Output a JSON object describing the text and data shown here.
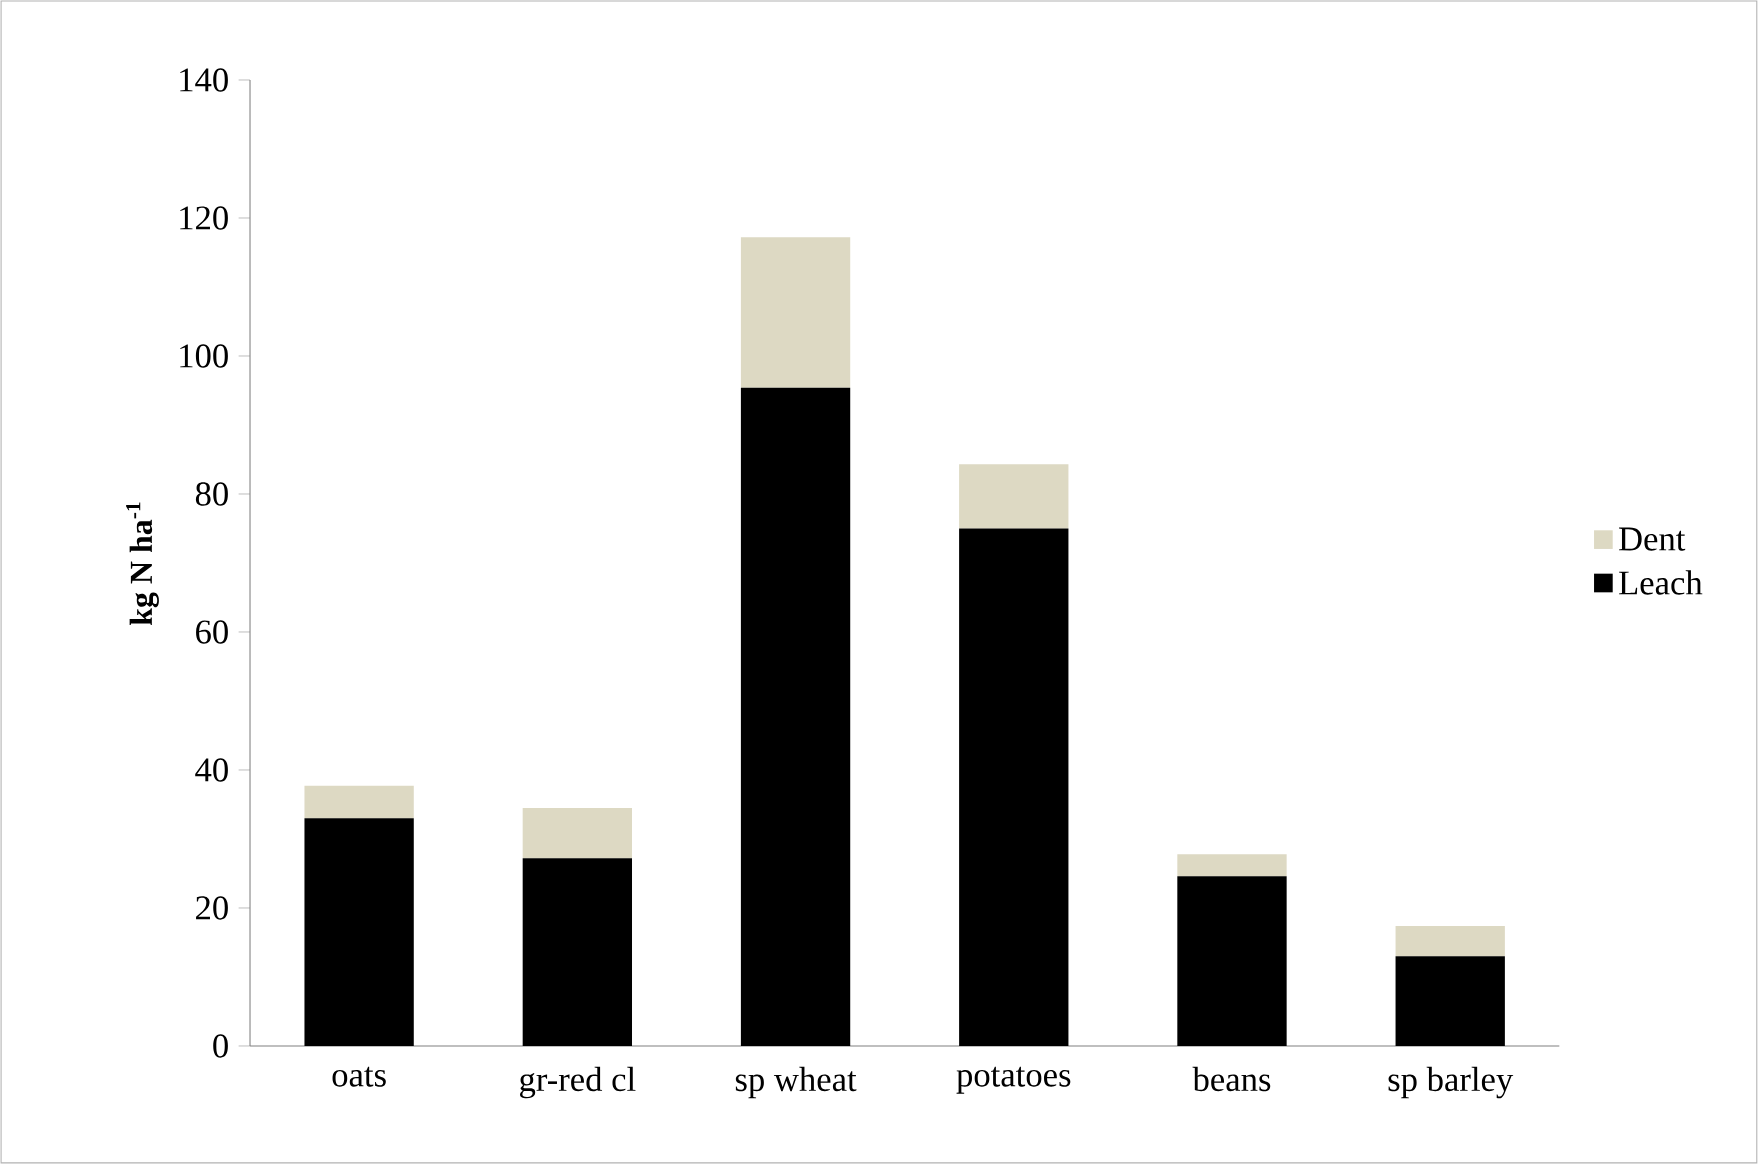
{
  "chart_data": {
    "type": "bar",
    "stacked": true,
    "ylabel": "kg N ha$^{-1}$",
    "categories": [
      "oats",
      "gr-red cl",
      "sp wheat",
      "potatoes",
      "beans",
      "sp barley"
    ],
    "series": [
      {
        "name": "Leach",
        "color": "#000000",
        "values": [
          33,
          27.2,
          95.4,
          75,
          24.6,
          13
        ]
      },
      {
        "name": "Dent",
        "color": "#ddd9c3",
        "values": [
          4.7,
          7.3,
          21.8,
          9.3,
          3.2,
          4.4
        ]
      }
    ],
    "ylim": [
      0,
      140
    ],
    "yticks": [
      0,
      20,
      40,
      60,
      80,
      100,
      120,
      140
    ],
    "legend": "right"
  }
}
